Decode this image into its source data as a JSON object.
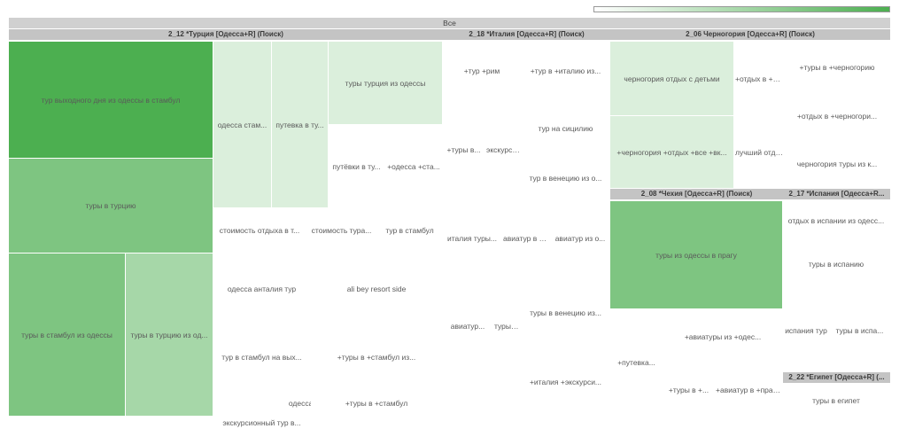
{
  "colors": {
    "scale_low": "#ffffff",
    "scale_high": "#4caf50",
    "header_bg": "#c4c4c4",
    "root_bg": "#d0d0d0"
  },
  "chart_data": {
    "type": "treemap",
    "title": "",
    "root_label": "Все",
    "legend": {
      "kind": "color-scale",
      "placement": "top-right",
      "low_color": "#ffffff",
      "high_color": "#4caf50"
    },
    "groups": [
      {
        "name": "2_12 *Турция [Одесса+R] (Поиск)",
        "items": [
          {
            "label": "тур выходного дня из одессы в стамбул",
            "intensity": 1.0
          },
          {
            "label": "туры в турцию",
            "intensity": 0.72
          },
          {
            "label": "туры в стамбул из одессы",
            "intensity": 0.72
          },
          {
            "label": "туры в турцию из од...",
            "intensity": 0.5
          },
          {
            "label": "одесса стам...",
            "intensity": 0.2
          },
          {
            "label": "путевка в ту...",
            "intensity": 0.2
          },
          {
            "label": "туры турция из одессы",
            "intensity": 0.2
          },
          {
            "label": "путёвки в ту...",
            "intensity": 0.0
          },
          {
            "label": "+одесса +ста...",
            "intensity": 0.0
          },
          {
            "label": "стоимость отдыха в т...",
            "intensity": 0.0
          },
          {
            "label": "стоимость тура...",
            "intensity": 0.0
          },
          {
            "label": "тур в стамбул",
            "intensity": 0.0
          },
          {
            "label": "одесса анталия тур",
            "intensity": 0.0
          },
          {
            "label": "ali bey resort side",
            "intensity": 0.0
          },
          {
            "label": "тур в стамбул на вых...",
            "intensity": 0.0
          },
          {
            "label": "+туры в +стамбул из...",
            "intensity": 0.0
          },
          {
            "label": "одесса ту...",
            "intensity": 0.0
          },
          {
            "label": "экскурсионный тур в...",
            "intensity": 0.0
          },
          {
            "label": "+туры в +стамбул",
            "intensity": 0.0
          }
        ]
      },
      {
        "name": "2_18 *Италия [Одесса+R] (Поиск)",
        "items": [
          {
            "label": "+тур +рим",
            "intensity": 0.0
          },
          {
            "label": "+тур в +италию из...",
            "intensity": 0.0
          },
          {
            "label": "тур на сицилию",
            "intensity": 0.0
          },
          {
            "label": "+туры в...",
            "intensity": 0.0
          },
          {
            "label": "экскурси...",
            "intensity": 0.0
          },
          {
            "label": "тур в венецию из о...",
            "intensity": 0.0
          },
          {
            "label": "италия туры...",
            "intensity": 0.0
          },
          {
            "label": "авиатур в ит...",
            "intensity": 0.0
          },
          {
            "label": "авиатур из о...",
            "intensity": 0.0
          },
          {
            "label": "туры в венецию из...",
            "intensity": 0.0
          },
          {
            "label": "авиатур...",
            "intensity": 0.0
          },
          {
            "label": "туры в и...",
            "intensity": 0.0
          },
          {
            "label": "+италия +экскурси...",
            "intensity": 0.0
          }
        ]
      },
      {
        "name": "2_06 Черногория [Одесса+R] (Поиск)",
        "items": [
          {
            "label": "черногория отдых с детьми",
            "intensity": 0.2
          },
          {
            "label": "+отдых в +чер...",
            "intensity": 0.0
          },
          {
            "label": "+туры в +черногорию",
            "intensity": 0.0
          },
          {
            "label": "+отдых в +черногори...",
            "intensity": 0.0
          },
          {
            "label": "+черногория +отдых +все +вк...",
            "intensity": 0.2
          },
          {
            "label": "лучший отдых...",
            "intensity": 0.0
          },
          {
            "label": "черногория туры из к...",
            "intensity": 0.0
          }
        ]
      },
      {
        "name": "2_08 *Чехия [Одесса+R] (Поиск)",
        "items": [
          {
            "label": "туры из одессы в прагу",
            "intensity": 0.72
          },
          {
            "label": "+авиатуры из +одес...",
            "intensity": 0.0
          },
          {
            "label": "+путевка...",
            "intensity": 0.0
          },
          {
            "label": "+туры в +...",
            "intensity": 0.0
          },
          {
            "label": "+авиатур в +прагу и...",
            "intensity": 0.0
          }
        ]
      },
      {
        "name": "2_17 *Испания [Одесса+R...",
        "items": [
          {
            "label": "отдых в испании из одесс...",
            "intensity": 0.0
          },
          {
            "label": "туры в испанию",
            "intensity": 0.0
          },
          {
            "label": "испания тур",
            "intensity": 0.0
          },
          {
            "label": "туры в испа...",
            "intensity": 0.0
          }
        ]
      },
      {
        "name": "2_22 *Египет [Одесса+R] (...",
        "items": [
          {
            "label": "туры в египет",
            "intensity": 0.0
          }
        ]
      }
    ]
  }
}
